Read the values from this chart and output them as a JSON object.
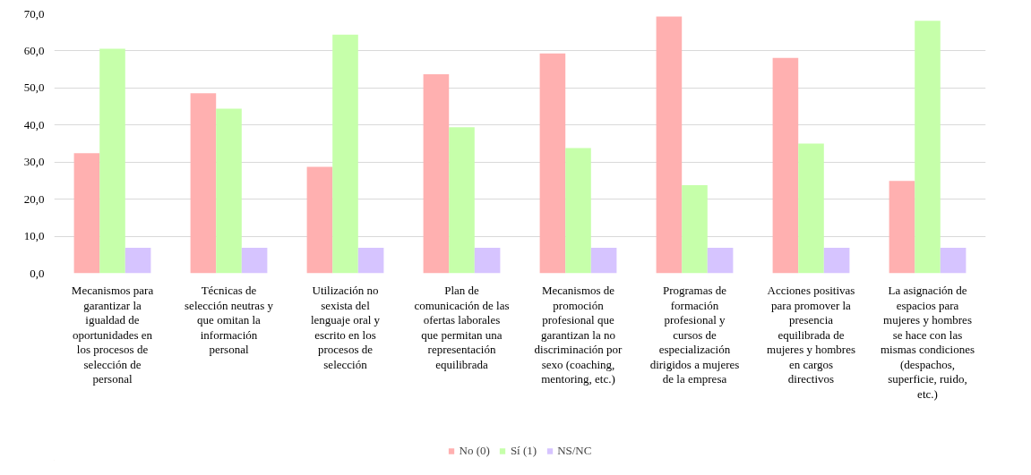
{
  "chart_data": {
    "type": "bar",
    "categories": [
      "Mecanismos para garantizar la igualdad de oportunidades en los procesos de selección de personal",
      "Técnicas de selección neutras y que omitan la información personal",
      "Utilización no sexista del lenguaje oral y escrito en los procesos de selección",
      "Plan de comunicación de las ofertas laborales que permitan una representación equilibrada",
      "Mecanismos de promoción profesional que garantizan la no discriminación por sexo (coaching, mentoring, etc.)",
      "Programas de formación profesional y cursos de especialización dirigidos a mujeres de la empresa",
      "Acciones positivas para promover la presencia equilibrada de mujeres y hombres en cargos directivos",
      "La asignación de espacios para mujeres y hombres se hace con las mismas condiciones (despachos, superficie, ruido, etc.)"
    ],
    "series": [
      {
        "name": "No (0)",
        "color": "#ffb0b0",
        "values": [
          32.4,
          48.6,
          28.7,
          53.7,
          59.3,
          69.3,
          58.1,
          24.9
        ]
      },
      {
        "name": "Sí (1)",
        "color": "#c6ffaa",
        "values": [
          60.6,
          44.4,
          64.4,
          39.4,
          33.8,
          23.8,
          35.0,
          68.1
        ]
      },
      {
        "name": "NS/NC",
        "color": "#d6c4ff",
        "values": [
          6.9,
          6.9,
          6.9,
          6.9,
          6.9,
          6.9,
          6.9,
          6.9
        ]
      }
    ],
    "ylim": [
      0,
      70
    ],
    "yticks": [
      {
        "value": 0,
        "label": "0,0"
      },
      {
        "value": 10,
        "label": "10,0"
      },
      {
        "value": 20,
        "label": "20,0"
      },
      {
        "value": 30,
        "label": "30,0"
      },
      {
        "value": 40,
        "label": "40,0"
      },
      {
        "value": 50,
        "label": "50,0"
      },
      {
        "value": 60,
        "label": "60,0"
      },
      {
        "value": 70,
        "label": "70,0"
      }
    ],
    "grid": "y",
    "legend": "bottom"
  }
}
